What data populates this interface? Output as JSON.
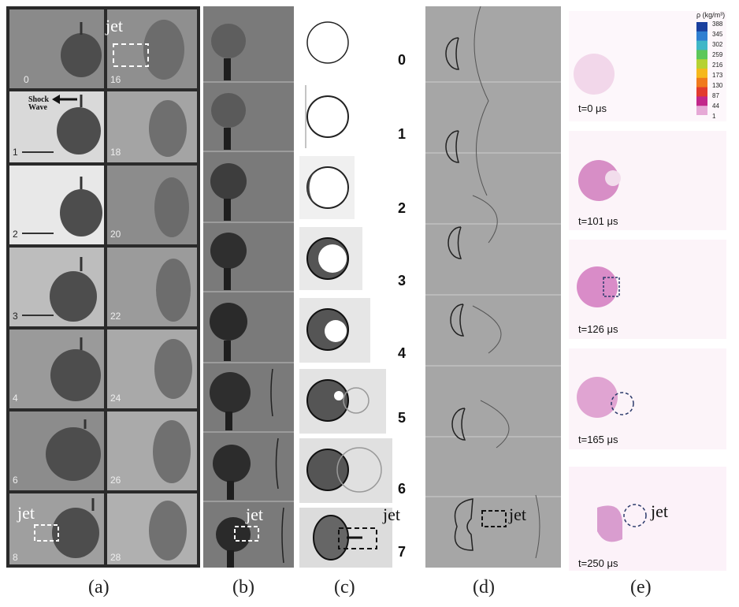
{
  "panel_labels": [
    "(a)",
    "(b)",
    "(c)",
    "(d)",
    "(e)"
  ],
  "frame_numbers": [
    "0",
    "1",
    "2",
    "3",
    "4",
    "5",
    "6",
    "7"
  ],
  "a_left_frames": [
    "0",
    "1",
    "2",
    "3",
    "4",
    "6",
    "8"
  ],
  "a_right_frames": [
    "16",
    "18",
    "20",
    "22",
    "24",
    "26",
    "28"
  ],
  "jet_label": "jet",
  "shock_wave_label": "Shock\nWave",
  "colorbar": {
    "title": "ρ (kg/m³)",
    "ticks": [
      "388",
      "345",
      "302",
      "259",
      "216",
      "173",
      "130",
      "87",
      "44",
      "1"
    ],
    "colors": [
      "#1a3f9e",
      "#2f7fd1",
      "#3fb7c7",
      "#5cc75a",
      "#b5d233",
      "#f5b81c",
      "#f07a1c",
      "#e23b2e",
      "#c2278a",
      "#e6a9d6"
    ]
  },
  "time_labels": [
    "t=0 μs",
    "t=101 μs",
    "t=126 μs",
    "t=165 μs",
    "t=250 μs"
  ]
}
